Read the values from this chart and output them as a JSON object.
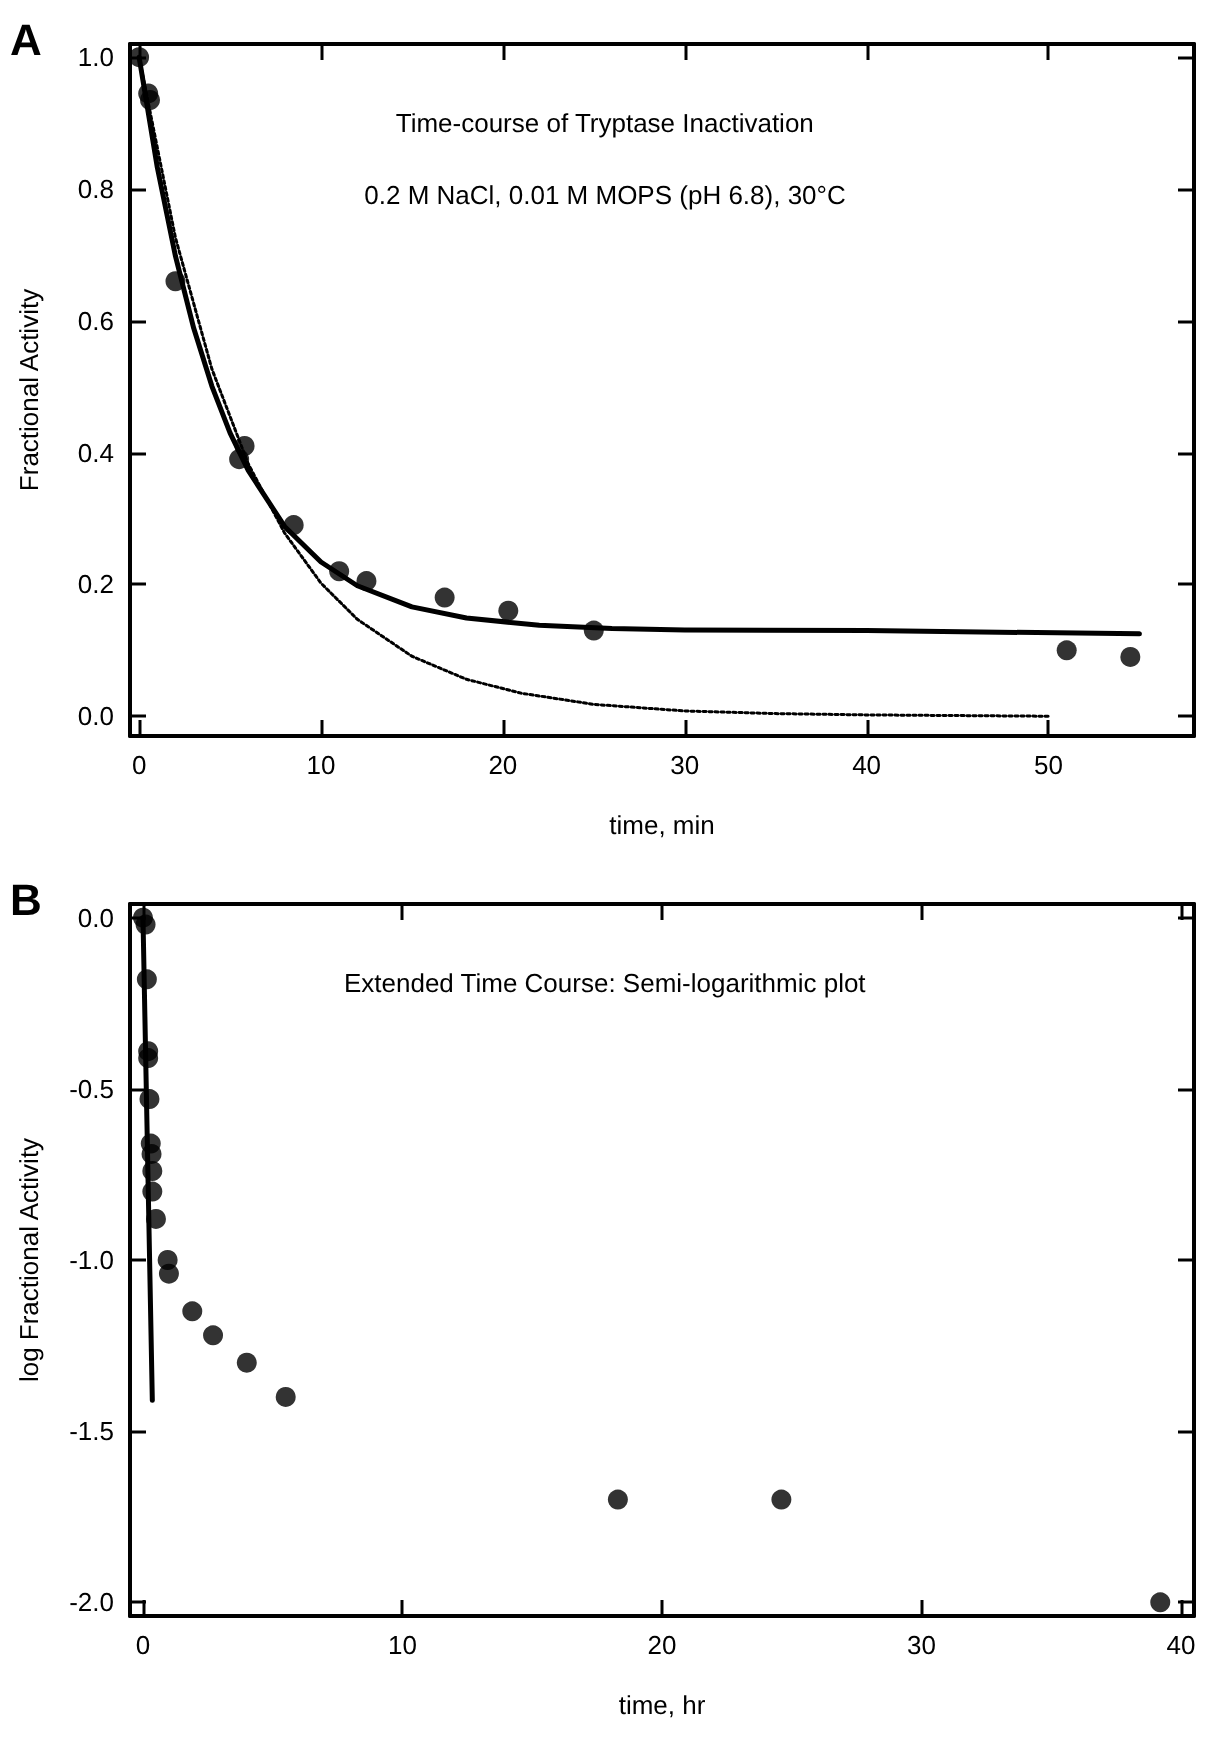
{
  "chart_data": [
    {
      "type": "scatter",
      "title": "A",
      "xlabel": "time, min",
      "ylabel": "Fractional Activity",
      "annotations": [
        "Time-course of Tryptase Inactivation",
        "0.2 M NaCl, 0.01 M MOPS (pH 6.8), 30°C"
      ],
      "xlim": [
        -0.5,
        58
      ],
      "xticks": [
        0,
        10,
        20,
        30,
        40,
        50
      ],
      "ylim": [
        -0.03,
        1.02
      ],
      "yticks": [
        {
          "value": 0,
          "label": "0.0"
        },
        {
          "value": 0.2,
          "label": "0.2"
        },
        {
          "value": 0.4,
          "label": "0.4"
        },
        {
          "value": 0.6,
          "label": "0.6"
        },
        {
          "value": 0.8,
          "label": "0.8"
        },
        {
          "value": 1,
          "label": "1.0"
        }
      ],
      "series": [
        {
          "type": "line",
          "color": "#000000",
          "marker": "none",
          "line_style": "dotted",
          "x": [
            0,
            2,
            4,
            6,
            8,
            10,
            12,
            15,
            18,
            21,
            25,
            30,
            35,
            40,
            50
          ],
          "values": [
            1.0,
            0.726,
            0.527,
            0.383,
            0.278,
            0.202,
            0.147,
            0.091,
            0.056,
            0.035,
            0.018,
            0.008,
            0.004,
            0.002,
            0.0
          ]
        },
        {
          "type": "line",
          "color": "#000000",
          "marker": "none",
          "line_style": "solid",
          "x": [
            0,
            1,
            2,
            3,
            4,
            5,
            6,
            8,
            10,
            12,
            15,
            18,
            22,
            26,
            30,
            40,
            55
          ],
          "values": [
            1.0,
            0.833,
            0.698,
            0.589,
            0.501,
            0.43,
            0.373,
            0.288,
            0.234,
            0.198,
            0.166,
            0.149,
            0.138,
            0.133,
            0.131,
            0.13,
            0.125
          ]
        },
        {
          "color": "#000000",
          "marker": "circle",
          "x": [
            0,
            0.5,
            0.6,
            2,
            5.5,
            5.8,
            8.5,
            11,
            12.5,
            16.8,
            20.3,
            25,
            51,
            54.5
          ],
          "values": [
            1.0,
            0.945,
            0.935,
            0.66,
            0.39,
            0.41,
            0.29,
            0.22,
            0.205,
            0.18,
            0.16,
            0.13,
            0.1,
            0.09
          ]
        }
      ]
    },
    {
      "type": "scatter",
      "title": "B",
      "xlabel": "time, hr",
      "ylabel": "log Fractional Activity",
      "annotations": [
        "Extended Time Course: Semi-logarithmic plot"
      ],
      "xlim": [
        -0.5,
        40.5
      ],
      "xticks": [
        0,
        10,
        20,
        30,
        40
      ],
      "ylim": [
        -2.04,
        0.04
      ],
      "yticks": [
        {
          "value": -2,
          "label": "-2.0"
        },
        {
          "value": -1.5,
          "label": "-1.5"
        },
        {
          "value": -1,
          "label": "-1.0"
        },
        {
          "value": -0.5,
          "label": "-0.5"
        },
        {
          "value": 0,
          "label": "0.0"
        }
      ],
      "series": [
        {
          "type": "line",
          "color": "#000000",
          "marker": "none",
          "line_style": "solid",
          "x": [
            0,
            0.36
          ],
          "values": [
            0.0,
            -1.41
          ]
        },
        {
          "color": "#000000",
          "marker": "circle",
          "x": [
            0,
            0.1,
            0.15,
            0.2,
            0.2,
            0.25,
            0.3,
            0.33,
            0.36,
            0.36,
            0.5,
            0.95,
            1.0,
            1.9,
            2.7,
            4.0,
            5.5,
            18.3,
            24.6,
            39.2
          ],
          "values": [
            0.0,
            -0.02,
            -0.18,
            -0.39,
            -0.41,
            -0.53,
            -0.66,
            -0.69,
            -0.74,
            -0.8,
            -0.88,
            -1.0,
            -1.04,
            -1.15,
            -1.22,
            -1.3,
            -1.4,
            -1.7,
            -1.7,
            -2.0
          ]
        }
      ]
    }
  ]
}
